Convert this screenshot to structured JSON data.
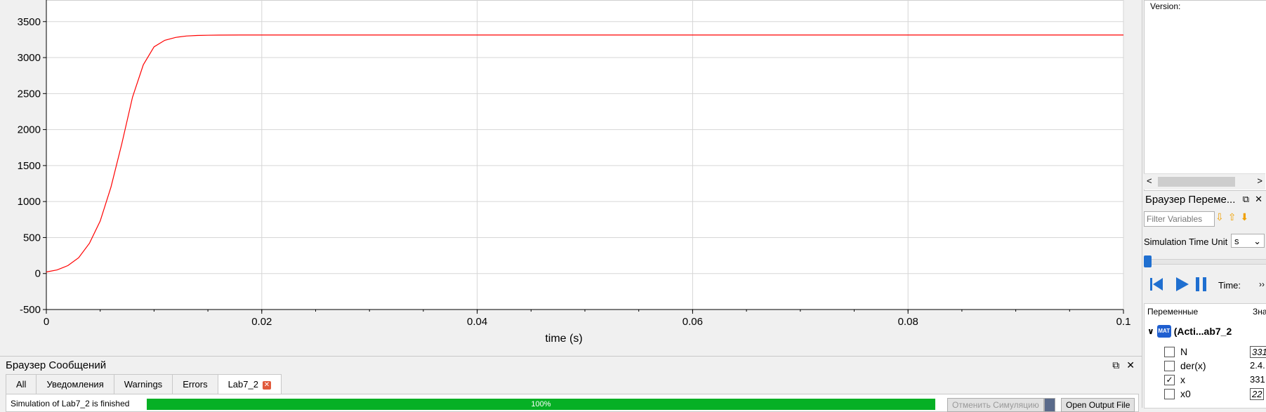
{
  "chart_data": {
    "type": "line",
    "xlabel": "time (s)",
    "ylabel": "",
    "xlim": [
      0,
      0.1
    ],
    "ylim": [
      -500,
      3800
    ],
    "x_ticks": [
      "0",
      "0.02",
      "0.04",
      "0.06",
      "0.08",
      "0.1"
    ],
    "x_tick_values": [
      0,
      0.02,
      0.04,
      0.06,
      0.08,
      0.1
    ],
    "y_ticks": [
      "-500",
      "0",
      "500",
      "1000",
      "1500",
      "2000",
      "2500",
      "3000",
      "3500"
    ],
    "y_tick_values": [
      -500,
      0,
      500,
      1000,
      1500,
      2000,
      2500,
      3000,
      3500
    ],
    "grid": true,
    "series": [
      {
        "color": "#ff0000",
        "x": [
          0,
          0.001,
          0.002,
          0.003,
          0.004,
          0.005,
          0.006,
          0.007,
          0.008,
          0.009,
          0.01,
          0.011,
          0.012,
          0.013,
          0.014,
          0.015,
          0.016,
          0.018,
          0.02,
          0.03,
          0.04,
          0.06,
          0.08,
          0.1
        ],
        "y": [
          22,
          50,
          110,
          220,
          420,
          730,
          1200,
          1800,
          2450,
          2900,
          3150,
          3240,
          3280,
          3300,
          3308,
          3311,
          3312,
          3313,
          3313,
          3313,
          3313,
          3313,
          3313,
          3313
        ]
      }
    ]
  },
  "message_browser": {
    "title": "Браузер Сообщений",
    "tabs": [
      {
        "label": "All"
      },
      {
        "label": "Уведомления"
      },
      {
        "label": "Warnings"
      },
      {
        "label": "Errors"
      },
      {
        "label": "Lab7_2"
      }
    ],
    "status_text": "Simulation of Lab7_2 is finished",
    "progress": 100,
    "progress_label": "100%",
    "cancel_label": "Отменить Симуляцию",
    "open_output_label": "Open Output File"
  },
  "info": {
    "version_label": "Version:"
  },
  "variables_browser": {
    "title": "Браузер Переме...",
    "filter_placeholder": "Filter Variables",
    "sim_time_unit_label": "Simulation Time Unit",
    "sim_time_unit_value": "s",
    "time_label": "Time:",
    "col_variables": "Переменные",
    "col_value": "Зна",
    "root_label": "(Acti...ab7_2",
    "mat_icon_text": "MAT",
    "variables": [
      {
        "name": "N",
        "value": "331",
        "checked": false
      },
      {
        "name": "der(x)",
        "value": "2.4.",
        "checked": false
      },
      {
        "name": "x",
        "value": "331",
        "checked": true
      },
      {
        "name": "x0",
        "value": "22",
        "checked": false
      }
    ]
  }
}
